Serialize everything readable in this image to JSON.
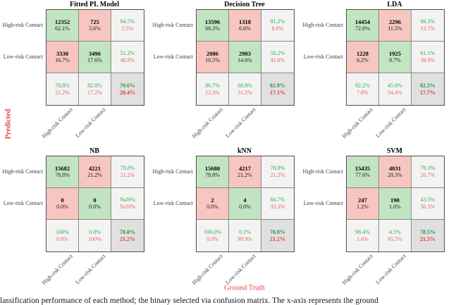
{
  "figure": {
    "y_axis_label": "Predicted",
    "x_axis_label": "Ground Truth",
    "axis_label_color": "#e8413c",
    "caption_fragment": "lassification performance of each method; the binary selected via confusion matrix. The x-axis represents the ground",
    "colors": {
      "diagonal_cell": "#c2e4c1",
      "offdiagonal_cell": "#f7c6c1",
      "summary_cell": "#f3f3f3",
      "total_cell": "#e0e0e0",
      "good_text": "#38a558",
      "bad_text": "#ec6058",
      "grid_border": "#8a8a8a"
    }
  },
  "chart_data": [
    {
      "type": "heatmap",
      "title": "Fitted PL Model",
      "xlabel": "Ground Truth",
      "ylabel": "Predicted",
      "classes": [
        "High-risk Contact",
        "Low-risk Contact"
      ],
      "counts": [
        [
          12352,
          725
        ],
        [
          3330,
          3496
        ]
      ],
      "cells": [
        {
          "top": "12352",
          "bottom": "62.1%",
          "kind": "diag"
        },
        {
          "top": "725",
          "bottom": "3.6%",
          "kind": "off"
        },
        {
          "top": "94.5%",
          "bottom": "5.5%",
          "kind": "sum"
        },
        {
          "top": "3330",
          "bottom": "16.7%",
          "kind": "off"
        },
        {
          "top": "3496",
          "bottom": "17.6%",
          "kind": "diag"
        },
        {
          "top": "51.2%",
          "bottom": "48.8%",
          "kind": "sum"
        },
        {
          "top": "78.8%",
          "bottom": "21.2%",
          "kind": "sum"
        },
        {
          "top": "82.8%",
          "bottom": "17.2%",
          "kind": "sum"
        },
        {
          "top": "79.6%",
          "bottom": "20.4%",
          "kind": "total"
        }
      ]
    },
    {
      "type": "heatmap",
      "title": "Decision Tree",
      "xlabel": "Ground Truth",
      "ylabel": "Predicted",
      "classes": [
        "High-risk Contact",
        "Low-risk Contact"
      ],
      "counts": [
        [
          13596,
          1318
        ],
        [
          2086,
          2903
        ]
      ],
      "cells": [
        {
          "top": "13596",
          "bottom": "68.3%",
          "kind": "diag"
        },
        {
          "top": "1318",
          "bottom": "6.6%",
          "kind": "off"
        },
        {
          "top": "91.2%",
          "bottom": "8.8%",
          "kind": "sum"
        },
        {
          "top": "2086",
          "bottom": "10.5%",
          "kind": "off"
        },
        {
          "top": "2903",
          "bottom": "14.6%",
          "kind": "diag"
        },
        {
          "top": "58.2%",
          "bottom": "41.8%",
          "kind": "sum"
        },
        {
          "top": "86.7%",
          "bottom": "13.3%",
          "kind": "sum"
        },
        {
          "top": "68.8%",
          "bottom": "31.2%",
          "kind": "sum"
        },
        {
          "top": "82.9%",
          "bottom": "17.1%",
          "kind": "total"
        }
      ]
    },
    {
      "type": "heatmap",
      "title": "LDA",
      "xlabel": "Ground Truth",
      "ylabel": "Predicted",
      "classes": [
        "High-risk Contact",
        "Low-risk Contact"
      ],
      "counts": [
        [
          14454,
          2296
        ],
        [
          1228,
          1925
        ]
      ],
      "cells": [
        {
          "top": "14454",
          "bottom": "72.6%",
          "kind": "diag"
        },
        {
          "top": "2296",
          "bottom": "11.5%",
          "kind": "off"
        },
        {
          "top": "86.3%",
          "bottom": "13.7%",
          "kind": "sum"
        },
        {
          "top": "1228",
          "bottom": "6.2%",
          "kind": "off"
        },
        {
          "top": "1925",
          "bottom": "9.7%",
          "kind": "diag"
        },
        {
          "top": "61.1%",
          "bottom": "38.9%",
          "kind": "sum"
        },
        {
          "top": "92.2%",
          "bottom": "7.8%",
          "kind": "sum"
        },
        {
          "top": "45.6%",
          "bottom": "54.4%",
          "kind": "sum"
        },
        {
          "top": "82.3%",
          "bottom": "17.7%",
          "kind": "total"
        }
      ]
    },
    {
      "type": "heatmap",
      "title": "NB",
      "xlabel": "Ground Truth",
      "ylabel": "Predicted",
      "classes": [
        "High-risk Contact",
        "Low-risk Contact"
      ],
      "counts": [
        [
          15682,
          4221
        ],
        [
          0,
          0
        ]
      ],
      "cells": [
        {
          "top": "15682",
          "bottom": "78.8%",
          "kind": "diag"
        },
        {
          "top": "4221",
          "bottom": "21.2%",
          "kind": "off"
        },
        {
          "top": "78.8%",
          "bottom": "21.2%",
          "kind": "sum"
        },
        {
          "top": "0",
          "bottom": "0.0%",
          "kind": "off"
        },
        {
          "top": "0",
          "bottom": "0.0%",
          "kind": "diag"
        },
        {
          "top": "NaN%",
          "bottom": "NaN%",
          "kind": "sum"
        },
        {
          "top": "100%",
          "bottom": "0.0%",
          "kind": "sum"
        },
        {
          "top": "0.0%",
          "bottom": "100%",
          "kind": "sum"
        },
        {
          "top": "78.8%",
          "bottom": "21.2%",
          "kind": "total"
        }
      ]
    },
    {
      "type": "heatmap",
      "title": "kNN",
      "xlabel": "Ground Truth",
      "ylabel": "Predicted",
      "classes": [
        "High-risk Contact",
        "Low-risk Contact"
      ],
      "counts": [
        [
          15680,
          4217
        ],
        [
          2,
          4
        ]
      ],
      "cells": [
        {
          "top": "15680",
          "bottom": "78.8%",
          "kind": "diag"
        },
        {
          "top": "4217",
          "bottom": "21.2%",
          "kind": "off"
        },
        {
          "top": "78.8%",
          "bottom": "21.2%",
          "kind": "sum"
        },
        {
          "top": "2",
          "bottom": "0.0%",
          "kind": "off"
        },
        {
          "top": "4",
          "bottom": "0.0%",
          "kind": "diag"
        },
        {
          "top": "66.7%",
          "bottom": "33.3%",
          "kind": "sum"
        },
        {
          "top": "100.0%",
          "bottom": "0.0%",
          "kind": "sum"
        },
        {
          "top": "0.1%",
          "bottom": "99.9%",
          "kind": "sum"
        },
        {
          "top": "78.8%",
          "bottom": "21.2%",
          "kind": "total"
        }
      ]
    },
    {
      "type": "heatmap",
      "title": "SVM",
      "xlabel": "Ground Truth",
      "ylabel": "Predicted",
      "classes": [
        "High-risk Contact",
        "Low-risk Contact"
      ],
      "counts": [
        [
          15435,
          4031
        ],
        [
          247,
          190
        ]
      ],
      "cells": [
        {
          "top": "15435",
          "bottom": "77.6%",
          "kind": "diag"
        },
        {
          "top": "4031",
          "bottom": "20.3%",
          "kind": "off"
        },
        {
          "top": "79.3%",
          "bottom": "20.7%",
          "kind": "sum"
        },
        {
          "top": "247",
          "bottom": "1.2%",
          "kind": "off"
        },
        {
          "top": "190",
          "bottom": "1.0%",
          "kind": "diag"
        },
        {
          "top": "43.5%",
          "bottom": "56.5%",
          "kind": "sum"
        },
        {
          "top": "98.4%",
          "bottom": "1.6%",
          "kind": "sum"
        },
        {
          "top": "4.5%",
          "bottom": "95.5%",
          "kind": "sum"
        },
        {
          "top": "78.5%",
          "bottom": "21.5%",
          "kind": "total"
        }
      ]
    }
  ]
}
